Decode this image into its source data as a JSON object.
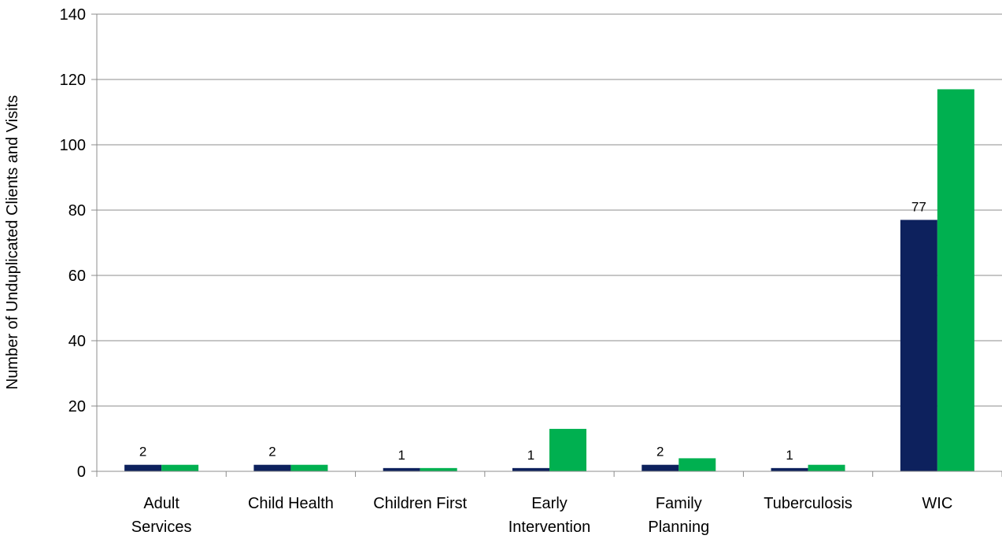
{
  "chart_data": {
    "type": "bar",
    "title": "",
    "xlabel": "",
    "ylabel": "Number of Unduplicated Clients and Visits",
    "ylim": [
      0,
      140
    ],
    "yticks": [
      0,
      20,
      40,
      60,
      80,
      100,
      120,
      140
    ],
    "grid": true,
    "legend": "none",
    "categories": [
      [
        "Adult",
        "Services"
      ],
      [
        "Child Health"
      ],
      [
        "Children First"
      ],
      [
        "Early",
        "Intervention"
      ],
      [
        "Family",
        "Planning"
      ],
      [
        "Tuberculosis"
      ],
      [
        "WIC"
      ]
    ],
    "series": [
      {
        "values": [
          2,
          2,
          1,
          1,
          2,
          1,
          77
        ],
        "labels": [
          "2",
          "2",
          "1",
          "1",
          "2",
          "1",
          "77"
        ],
        "color": "#0d215d"
      },
      {
        "values": [
          2,
          2,
          1,
          13,
          4,
          2,
          117
        ],
        "color": "#00b050"
      }
    ]
  }
}
